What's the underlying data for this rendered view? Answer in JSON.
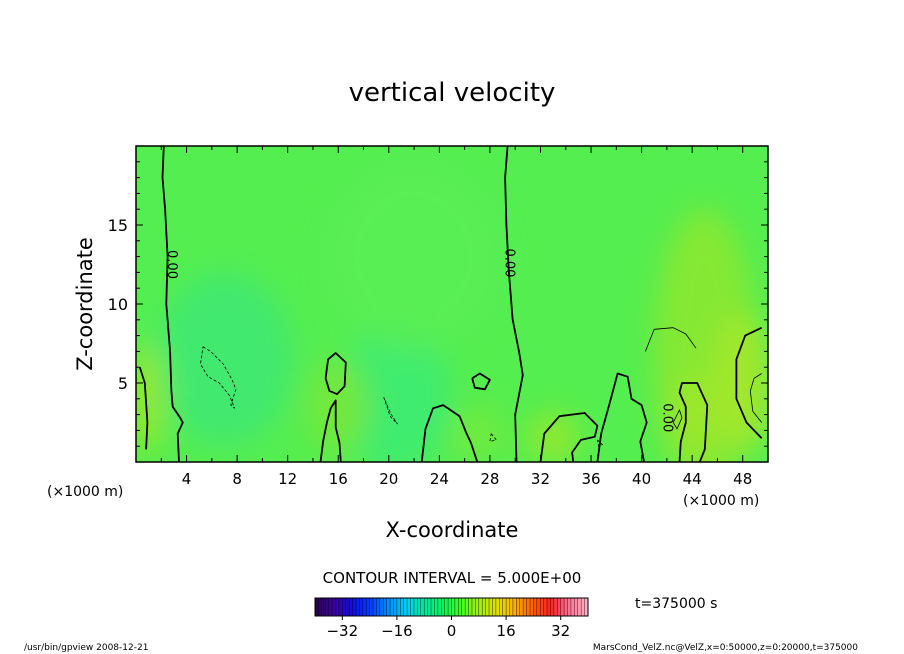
{
  "chart_data": {
    "type": "heatmap",
    "title": "vertical velocity",
    "xlabel": "X-coordinate",
    "ylabel": "Z-coordinate",
    "x_unit_left": "(×1000 m)",
    "x_unit_right": "(×1000 m)",
    "xlim": [
      0,
      50
    ],
    "ylim": [
      0,
      20
    ],
    "x_ticks": [
      4,
      8,
      12,
      16,
      20,
      24,
      28,
      32,
      36,
      40,
      44,
      48
    ],
    "y_ticks": [
      5,
      10,
      15
    ],
    "contour_interval": "CONTOUR INTERVAL = 5.000E+00",
    "contour_labels": [
      {
        "text": "0.00",
        "x": 2.8,
        "z": 12.5
      },
      {
        "text": "0.00",
        "x": 29.5,
        "z": 12.6
      },
      {
        "text": "0.00",
        "x": 42.0,
        "z": 2.8
      }
    ],
    "zero_contours": [
      [
        [
          2.2,
          20
        ],
        [
          2.1,
          18
        ],
        [
          2.3,
          16
        ],
        [
          2.5,
          13
        ],
        [
          2.4,
          10
        ],
        [
          2.7,
          7
        ],
        [
          2.8,
          4.5
        ],
        [
          2.9,
          3.5
        ],
        [
          3.5,
          2.8
        ],
        [
          3.7,
          2.5
        ],
        [
          3.3,
          1.8
        ],
        [
          3.4,
          0
        ]
      ],
      [
        [
          29.4,
          20
        ],
        [
          29.2,
          18
        ],
        [
          29.3,
          15
        ],
        [
          29.5,
          12
        ],
        [
          29.8,
          9
        ],
        [
          30.3,
          7
        ],
        [
          30.6,
          5.5
        ],
        [
          30.0,
          3
        ],
        [
          30.1,
          0
        ]
      ],
      [
        [
          14.6,
          0
        ],
        [
          14.8,
          1.3
        ],
        [
          15.1,
          2.5
        ],
        [
          15.4,
          3.4
        ],
        [
          15.8,
          3.9
        ],
        [
          15.8,
          2.2
        ],
        [
          16.1,
          1.2
        ],
        [
          16.2,
          0
        ]
      ],
      [
        [
          15.0,
          5.3
        ],
        [
          15.2,
          6.5
        ],
        [
          15.8,
          6.9
        ],
        [
          16.6,
          6.3
        ],
        [
          16.5,
          4.8
        ],
        [
          15.9,
          4.3
        ],
        [
          15.3,
          4.5
        ],
        [
          15.0,
          5.3
        ]
      ],
      [
        [
          22.6,
          0
        ],
        [
          22.9,
          2.1
        ],
        [
          23.5,
          3.4
        ],
        [
          24.3,
          3.6
        ],
        [
          25.6,
          2.9
        ],
        [
          26.1,
          1.9
        ],
        [
          26.5,
          1.2
        ],
        [
          27.0,
          0
        ]
      ],
      [
        [
          26.6,
          5.3
        ],
        [
          27.2,
          5.6
        ],
        [
          28.0,
          5.2
        ],
        [
          27.6,
          4.6
        ],
        [
          26.8,
          4.7
        ],
        [
          26.6,
          5.3
        ]
      ],
      [
        [
          32.0,
          0
        ],
        [
          32.3,
          1.8
        ],
        [
          33.5,
          2.9
        ],
        [
          35.5,
          3.1
        ],
        [
          36.5,
          2.3
        ],
        [
          36.3,
          1.6
        ],
        [
          35.2,
          1.4
        ],
        [
          34.5,
          0.6
        ],
        [
          34.6,
          0
        ]
      ],
      [
        [
          36.5,
          0
        ],
        [
          36.8,
          1.8
        ],
        [
          37.5,
          3.8
        ],
        [
          38.1,
          5.6
        ],
        [
          38.9,
          5.4
        ],
        [
          39.2,
          4.0
        ],
        [
          40.0,
          3.6
        ],
        [
          40.4,
          2.5
        ],
        [
          39.9,
          1.3
        ],
        [
          40.2,
          0
        ]
      ],
      [
        [
          43.0,
          0
        ],
        [
          43.1,
          1.3
        ],
        [
          43.5,
          2.5
        ],
        [
          43.5,
          3.5
        ],
        [
          43.0,
          4.4
        ],
        [
          43.2,
          5.0
        ],
        [
          44.4,
          5.0
        ],
        [
          45.2,
          3.6
        ],
        [
          45.0,
          0.8
        ],
        [
          44.6,
          0
        ]
      ],
      [
        [
          49.5,
          8.5
        ],
        [
          48.2,
          8.0
        ],
        [
          47.5,
          6.5
        ],
        [
          47.5,
          4.0
        ],
        [
          48.3,
          2.5
        ],
        [
          49.5,
          1.5
        ]
      ],
      [
        [
          0.8,
          0.8
        ],
        [
          0.9,
          2.5
        ],
        [
          0.7,
          5.0
        ],
        [
          0.3,
          6.0
        ]
      ]
    ],
    "negative_contours": [
      [
        [
          5.3,
          7.3
        ],
        [
          5.9,
          7.0
        ],
        [
          6.9,
          6.2
        ],
        [
          7.6,
          5.2
        ],
        [
          7.9,
          4.6
        ],
        [
          7.5,
          3.6
        ],
        [
          7.8,
          3.4
        ],
        [
          7.4,
          4.2
        ],
        [
          6.6,
          5.0
        ],
        [
          5.7,
          5.4
        ],
        [
          5.1,
          6.2
        ],
        [
          5.3,
          7.3
        ]
      ],
      [
        [
          19.6,
          4.1
        ],
        [
          20.1,
          2.9
        ],
        [
          20.7,
          2.4
        ],
        [
          20.2,
          3.0
        ],
        [
          19.6,
          4.1
        ]
      ],
      [
        [
          28.1,
          1.8
        ],
        [
          28.5,
          1.4
        ],
        [
          28.0,
          1.3
        ],
        [
          28.1,
          1.8
        ]
      ],
      [
        [
          36.5,
          1.4
        ],
        [
          36.9,
          1.1
        ],
        [
          36.6,
          1.0
        ],
        [
          36.5,
          1.4
        ]
      ]
    ],
    "positive_contours": [
      [
        [
          40.3,
          7.0
        ],
        [
          41.0,
          8.4
        ],
        [
          42.5,
          8.5
        ],
        [
          43.5,
          8.1
        ],
        [
          44.3,
          7.2
        ]
      ],
      [
        [
          42.5,
          2.5
        ],
        [
          43.0,
          3.3
        ],
        [
          43.2,
          2.8
        ],
        [
          42.8,
          2.1
        ],
        [
          42.5,
          2.5
        ]
      ],
      [
        [
          49.5,
          2.5
        ],
        [
          48.8,
          3.2
        ],
        [
          48.6,
          4.5
        ],
        [
          48.9,
          5.3
        ],
        [
          49.5,
          5.6
        ]
      ]
    ],
    "field_blobs": [
      {
        "x": 7.0,
        "z": 6.5,
        "rx": 5.5,
        "rz": 5.5,
        "color": "#3ee874"
      },
      {
        "x": 20.5,
        "z": 4.0,
        "rx": 4.5,
        "rz": 4.8,
        "color": "#3ceb74"
      },
      {
        "x": 16.0,
        "z": 3.5,
        "rx": 2.5,
        "rz": 3.0,
        "color": "#7ae83a"
      },
      {
        "x": 33.0,
        "z": 1.5,
        "rx": 2.0,
        "rz": 1.6,
        "color": "#9ce82a"
      },
      {
        "x": 45.0,
        "z": 7.0,
        "rx": 4.0,
        "rz": 9.0,
        "color": "#8ee82f"
      },
      {
        "x": 48.0,
        "z": 5.0,
        "rx": 2.5,
        "rz": 4.5,
        "color": "#a6e62a"
      },
      {
        "x": 44.0,
        "z": 3.0,
        "rx": 2.0,
        "rz": 2.5,
        "color": "#9ee62c"
      },
      {
        "x": 0.8,
        "z": 4.0,
        "rx": 1.5,
        "rz": 3.5,
        "color": "#9ce82a"
      },
      {
        "x": 27.0,
        "z": 1.8,
        "rx": 2.2,
        "rz": 1.8,
        "color": "#74ea3c"
      },
      {
        "x": 22.0,
        "z": 13.0,
        "rx": 7.0,
        "rz": 6.0,
        "color": "#5aee55"
      }
    ],
    "colorbar": {
      "min": -40,
      "max": 40,
      "ticks": [
        -32,
        -16,
        0,
        16,
        32
      ],
      "colors": [
        "#2a0050",
        "#3a00a0",
        "#1010e0",
        "#0040ff",
        "#0090ff",
        "#00d0f0",
        "#00e8a0",
        "#10f060",
        "#40ff20",
        "#a0f010",
        "#e0e000",
        "#ffb000",
        "#ff6000",
        "#ff2020",
        "#ff7090",
        "#ffb0c0"
      ]
    },
    "background_color": "#55ee50"
  },
  "time_label": "t=375000 s",
  "footer": {
    "left": "/usr/bin/gpview   2008-12-21",
    "right": "MarsCond_VelZ.nc@VelZ,x=0:50000,z=0:20000,t=375000"
  }
}
